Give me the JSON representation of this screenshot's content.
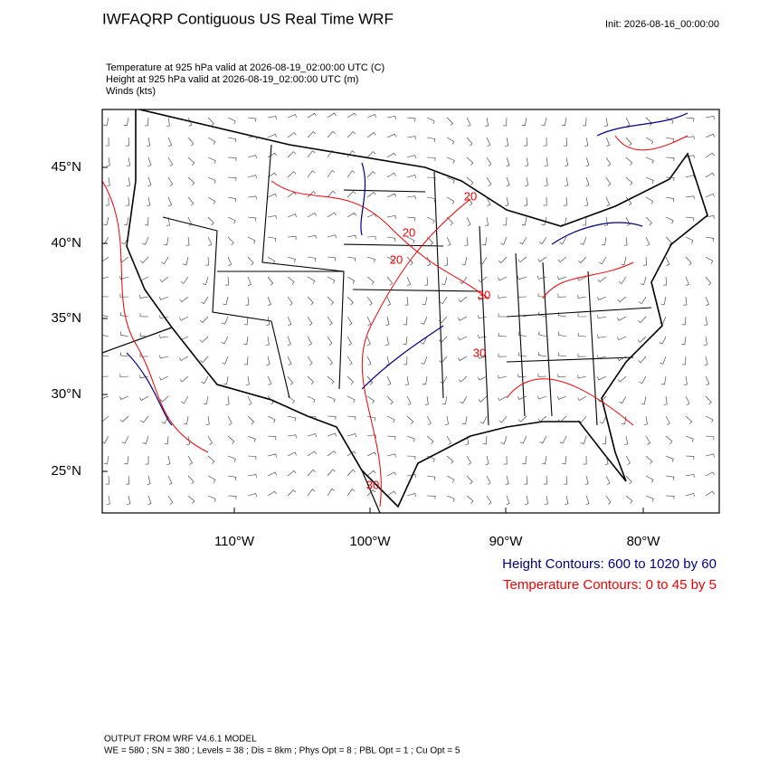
{
  "header": {
    "title": "IWFAQRP Contiguous US Real Time WRF",
    "init": "Init: 2026-08-16_00:00:00"
  },
  "fields": [
    "Temperature at 925 hPa valid at 2026-08-19_02:00:00 UTC   (C)",
    "Height at 925 hPa valid at 2026-08-19_02:00:00 UTC   (m)",
    "Winds   (kts)"
  ],
  "map": {
    "lat_labels": [
      "45°N",
      "40°N",
      "35°N",
      "30°N",
      "25°N"
    ],
    "lon_labels": [
      "110°W",
      "100°W",
      "90°W",
      "80°W"
    ],
    "contour_labels": [
      "20",
      "20",
      "20",
      "30",
      "30",
      "30"
    ]
  },
  "legend": [
    "Height Contours: 600 to 1020 by 60",
    "Temperature Contours: 0 to 45 by 5"
  ],
  "footer": [
    "OUTPUT FROM WRF V4.6.1 MODEL",
    "WE = 580 ; SN = 380 ; Levels = 38 ; Dis = 8km ; Phys Opt = 8 ; PBL Opt = 1 ; Cu Opt = 5"
  ]
}
